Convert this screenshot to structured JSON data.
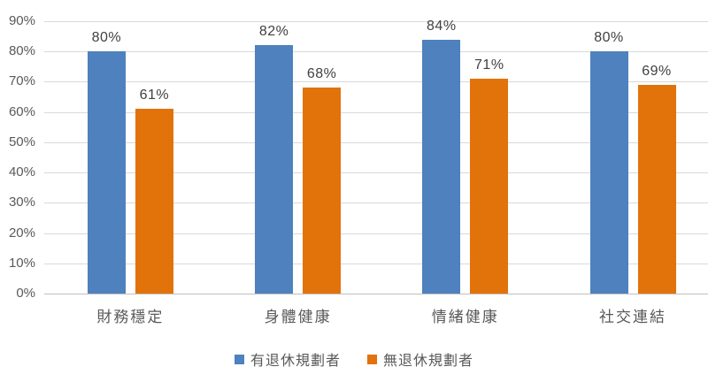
{
  "chart_data": {
    "type": "bar",
    "categories": [
      "財務穩定",
      "身體健康",
      "情緒健康",
      "社交連結"
    ],
    "series": [
      {
        "name": "有退休規劃者",
        "color": "#4e81bd",
        "values": [
          80,
          82,
          84,
          80
        ]
      },
      {
        "name": "無退休規劃者",
        "color": "#e2720a",
        "values": [
          61,
          68,
          71,
          69
        ]
      }
    ],
    "title": "",
    "xlabel": "",
    "ylabel": "",
    "ylim": [
      0,
      90
    ],
    "ytick_step": 10,
    "yticks": [
      "0%",
      "10%",
      "20%",
      "30%",
      "40%",
      "50%",
      "60%",
      "70%",
      "80%",
      "90%"
    ],
    "value_format": "percent",
    "data_labels": [
      "80%",
      "61%",
      "82%",
      "68%",
      "84%",
      "71%",
      "80%",
      "69%"
    ],
    "grid": true,
    "legend_position": "bottom",
    "colors": {
      "gridline": "#d9d9d9",
      "axis_line": "#bfbfbf",
      "tick_text": "#595959",
      "data_label_text": "#404040"
    }
  }
}
